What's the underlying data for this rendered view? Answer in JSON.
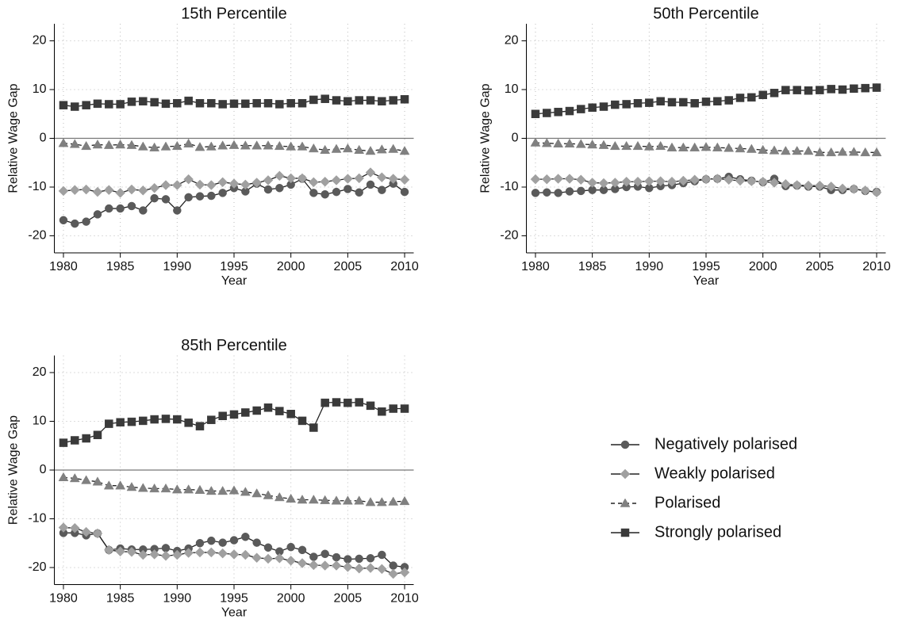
{
  "chart_data": [
    {
      "type": "line",
      "title": "15th Percentile",
      "x_label": "Year",
      "y_label": "Relative Wage Gap",
      "x": [
        1980,
        1981,
        1982,
        1983,
        1984,
        1985,
        1986,
        1987,
        1988,
        1989,
        1990,
        1991,
        1992,
        1993,
        1994,
        1995,
        1996,
        1997,
        1998,
        1999,
        2000,
        2001,
        2002,
        2003,
        2004,
        2005,
        2006,
        2007,
        2008,
        2009,
        2010
      ],
      "xlim": [
        1979.2,
        2010.8
      ],
      "xticks": [
        1980,
        1985,
        1990,
        1995,
        2000,
        2005,
        2010
      ],
      "ylim": [
        -23.5,
        23.5
      ],
      "yticks": [
        -20,
        -10,
        0,
        10,
        20
      ],
      "grid": true,
      "hline": 0,
      "series": [
        {
          "name": "Negatively polarised",
          "color": "#5a5a5a",
          "marker": "circle",
          "dashed": false,
          "values": [
            -16.8,
            -17.5,
            -17.1,
            -15.6,
            -14.4,
            -14.4,
            -13.9,
            -14.8,
            -12.3,
            -12.5,
            -14.8,
            -12.1,
            -11.9,
            -11.8,
            -11.2,
            -10.2,
            -10.9,
            -9.3,
            -10.5,
            -10.2,
            -9.5,
            -8.3,
            -11.2,
            -11.5,
            -11.0,
            -10.4,
            -11.1,
            -9.5,
            -10.6,
            -9.3,
            -11.0
          ]
        },
        {
          "name": "Weakly polarised",
          "color": "#a0a0a0",
          "marker": "diamond",
          "dashed": false,
          "values": [
            -10.8,
            -10.6,
            -10.5,
            -11.0,
            -10.6,
            -11.2,
            -10.5,
            -10.7,
            -10.2,
            -9.6,
            -9.6,
            -8.4,
            -9.5,
            -9.6,
            -9.0,
            -9.3,
            -9.5,
            -9.1,
            -8.6,
            -7.7,
            -8.2,
            -8.2,
            -9.0,
            -8.9,
            -8.6,
            -8.3,
            -8.2,
            -7.0,
            -8.0,
            -8.3,
            -8.5
          ]
        },
        {
          "name": "Polarised",
          "color": "#808080",
          "marker": "triangle",
          "dashed": true,
          "values": [
            -1.0,
            -1.2,
            -1.6,
            -1.3,
            -1.4,
            -1.3,
            -1.4,
            -1.7,
            -1.9,
            -1.7,
            -1.6,
            -1.1,
            -1.8,
            -1.7,
            -1.5,
            -1.4,
            -1.5,
            -1.5,
            -1.5,
            -1.6,
            -1.7,
            -1.7,
            -2.1,
            -2.4,
            -2.2,
            -2.1,
            -2.4,
            -2.6,
            -2.3,
            -2.2,
            -2.6
          ]
        },
        {
          "name": "Strongly polarised",
          "color": "#3a3a3a",
          "marker": "square",
          "dashed": false,
          "values": [
            6.8,
            6.5,
            6.8,
            7.1,
            7.0,
            7.0,
            7.5,
            7.6,
            7.4,
            7.1,
            7.2,
            7.7,
            7.2,
            7.2,
            7.0,
            7.1,
            7.1,
            7.2,
            7.2,
            7.0,
            7.2,
            7.2,
            7.9,
            8.1,
            7.8,
            7.6,
            7.8,
            7.8,
            7.6,
            7.8,
            8.0
          ]
        }
      ]
    },
    {
      "type": "line",
      "title": "50th Percentile",
      "x_label": "Year",
      "y_label": "Relative Wage Gap",
      "x": [
        1980,
        1981,
        1982,
        1983,
        1984,
        1985,
        1986,
        1987,
        1988,
        1989,
        1990,
        1991,
        1992,
        1993,
        1994,
        1995,
        1996,
        1997,
        1998,
        1999,
        2000,
        2001,
        2002,
        2003,
        2004,
        2005,
        2006,
        2007,
        2008,
        2009,
        2010
      ],
      "xlim": [
        1979.2,
        2010.8
      ],
      "xticks": [
        1980,
        1985,
        1990,
        1995,
        2000,
        2005,
        2010
      ],
      "ylim": [
        -23.5,
        23.5
      ],
      "yticks": [
        -20,
        -10,
        0,
        10,
        20
      ],
      "grid": true,
      "hline": 0,
      "series": [
        {
          "name": "Negatively polarised",
          "color": "#5a5a5a",
          "marker": "circle",
          "dashed": false,
          "values": [
            -11.2,
            -11.1,
            -11.2,
            -10.9,
            -10.8,
            -10.6,
            -10.6,
            -10.4,
            -10.0,
            -9.9,
            -10.2,
            -9.8,
            -9.6,
            -9.2,
            -8.8,
            -8.4,
            -8.3,
            -7.9,
            -8.4,
            -8.7,
            -9.0,
            -8.3,
            -9.8,
            -9.7,
            -9.9,
            -9.9,
            -10.6,
            -10.6,
            -10.4,
            -10.8,
            -11.0
          ]
        },
        {
          "name": "Weakly polarised",
          "color": "#a0a0a0",
          "marker": "diamond",
          "dashed": false,
          "values": [
            -8.4,
            -8.4,
            -8.3,
            -8.3,
            -8.5,
            -9.1,
            -9.2,
            -9.1,
            -8.9,
            -8.9,
            -8.8,
            -8.8,
            -8.9,
            -8.7,
            -8.5,
            -8.4,
            -8.3,
            -8.5,
            -8.7,
            -8.8,
            -8.9,
            -9.1,
            -9.4,
            -9.6,
            -9.7,
            -9.7,
            -9.9,
            -10.3,
            -10.4,
            -10.7,
            -11.1
          ]
        },
        {
          "name": "Polarised",
          "color": "#808080",
          "marker": "triangle",
          "dashed": true,
          "values": [
            -0.9,
            -1.0,
            -1.1,
            -1.1,
            -1.2,
            -1.3,
            -1.4,
            -1.6,
            -1.6,
            -1.6,
            -1.7,
            -1.6,
            -1.9,
            -1.9,
            -1.9,
            -1.8,
            -1.9,
            -2.0,
            -2.1,
            -2.2,
            -2.4,
            -2.5,
            -2.6,
            -2.6,
            -2.6,
            -2.9,
            -2.9,
            -2.8,
            -2.8,
            -2.9,
            -2.9
          ]
        },
        {
          "name": "Strongly polarised",
          "color": "#3a3a3a",
          "marker": "square",
          "dashed": false,
          "values": [
            5.0,
            5.2,
            5.4,
            5.6,
            6.0,
            6.3,
            6.5,
            6.9,
            7.0,
            7.2,
            7.3,
            7.6,
            7.4,
            7.4,
            7.2,
            7.5,
            7.6,
            7.8,
            8.3,
            8.4,
            8.9,
            9.3,
            9.9,
            9.9,
            9.8,
            9.9,
            10.1,
            10.0,
            10.2,
            10.3,
            10.4
          ]
        }
      ]
    },
    {
      "type": "line",
      "title": "85th Percentile",
      "x_label": "Year",
      "y_label": "Relative Wage Gap",
      "x": [
        1980,
        1981,
        1982,
        1983,
        1984,
        1985,
        1986,
        1987,
        1988,
        1989,
        1990,
        1991,
        1992,
        1993,
        1994,
        1995,
        1996,
        1997,
        1998,
        1999,
        2000,
        2001,
        2002,
        2003,
        2004,
        2005,
        2006,
        2007,
        2008,
        2009,
        2010
      ],
      "xlim": [
        1979.2,
        2010.8
      ],
      "xticks": [
        1980,
        1985,
        1990,
        1995,
        2000,
        2005,
        2010
      ],
      "ylim": [
        -23.5,
        23.5
      ],
      "yticks": [
        -20,
        -10,
        0,
        10,
        20
      ],
      "grid": true,
      "hline": 0,
      "series": [
        {
          "name": "Negatively polarised",
          "color": "#5a5a5a",
          "marker": "circle",
          "dashed": false,
          "values": [
            -12.9,
            -12.9,
            -13.4,
            -13.0,
            -16.4,
            -16.1,
            -16.3,
            -16.3,
            -16.2,
            -16.0,
            -16.6,
            -16.1,
            -15.0,
            -14.5,
            -14.9,
            -14.4,
            -13.7,
            -14.9,
            -15.9,
            -16.7,
            -15.8,
            -16.4,
            -17.8,
            -17.2,
            -17.9,
            -18.3,
            -18.2,
            -18.1,
            -17.4,
            -19.6,
            -19.9
          ]
        },
        {
          "name": "Weakly polarised",
          "color": "#a0a0a0",
          "marker": "diamond",
          "dashed": false,
          "values": [
            -11.8,
            -11.9,
            -12.7,
            -13.0,
            -16.4,
            -16.7,
            -16.8,
            -17.4,
            -17.3,
            -17.6,
            -17.4,
            -17.0,
            -16.9,
            -16.9,
            -17.1,
            -17.3,
            -17.4,
            -18.0,
            -18.2,
            -18.1,
            -18.6,
            -19.1,
            -19.5,
            -19.6,
            -19.6,
            -19.9,
            -20.2,
            -20.1,
            -20.3,
            -21.3,
            -21.0
          ]
        },
        {
          "name": "Polarised",
          "color": "#808080",
          "marker": "triangle",
          "dashed": true,
          "values": [
            -1.5,
            -1.7,
            -2.1,
            -2.4,
            -3.2,
            -3.2,
            -3.5,
            -3.7,
            -3.8,
            -3.8,
            -4.0,
            -4.0,
            -4.1,
            -4.3,
            -4.3,
            -4.2,
            -4.5,
            -4.8,
            -5.2,
            -5.6,
            -5.9,
            -6.1,
            -6.1,
            -6.2,
            -6.3,
            -6.3,
            -6.3,
            -6.6,
            -6.6,
            -6.5,
            -6.4
          ]
        },
        {
          "name": "Strongly polarised",
          "color": "#3a3a3a",
          "marker": "square",
          "dashed": false,
          "values": [
            5.6,
            6.1,
            6.5,
            7.2,
            9.5,
            9.8,
            9.9,
            10.1,
            10.4,
            10.5,
            10.4,
            9.7,
            9.0,
            10.3,
            11.1,
            11.4,
            11.8,
            12.2,
            12.8,
            12.1,
            11.5,
            10.1,
            8.7,
            13.8,
            13.9,
            13.8,
            13.9,
            13.2,
            12.0,
            12.6,
            12.6
          ]
        }
      ]
    }
  ]
}
